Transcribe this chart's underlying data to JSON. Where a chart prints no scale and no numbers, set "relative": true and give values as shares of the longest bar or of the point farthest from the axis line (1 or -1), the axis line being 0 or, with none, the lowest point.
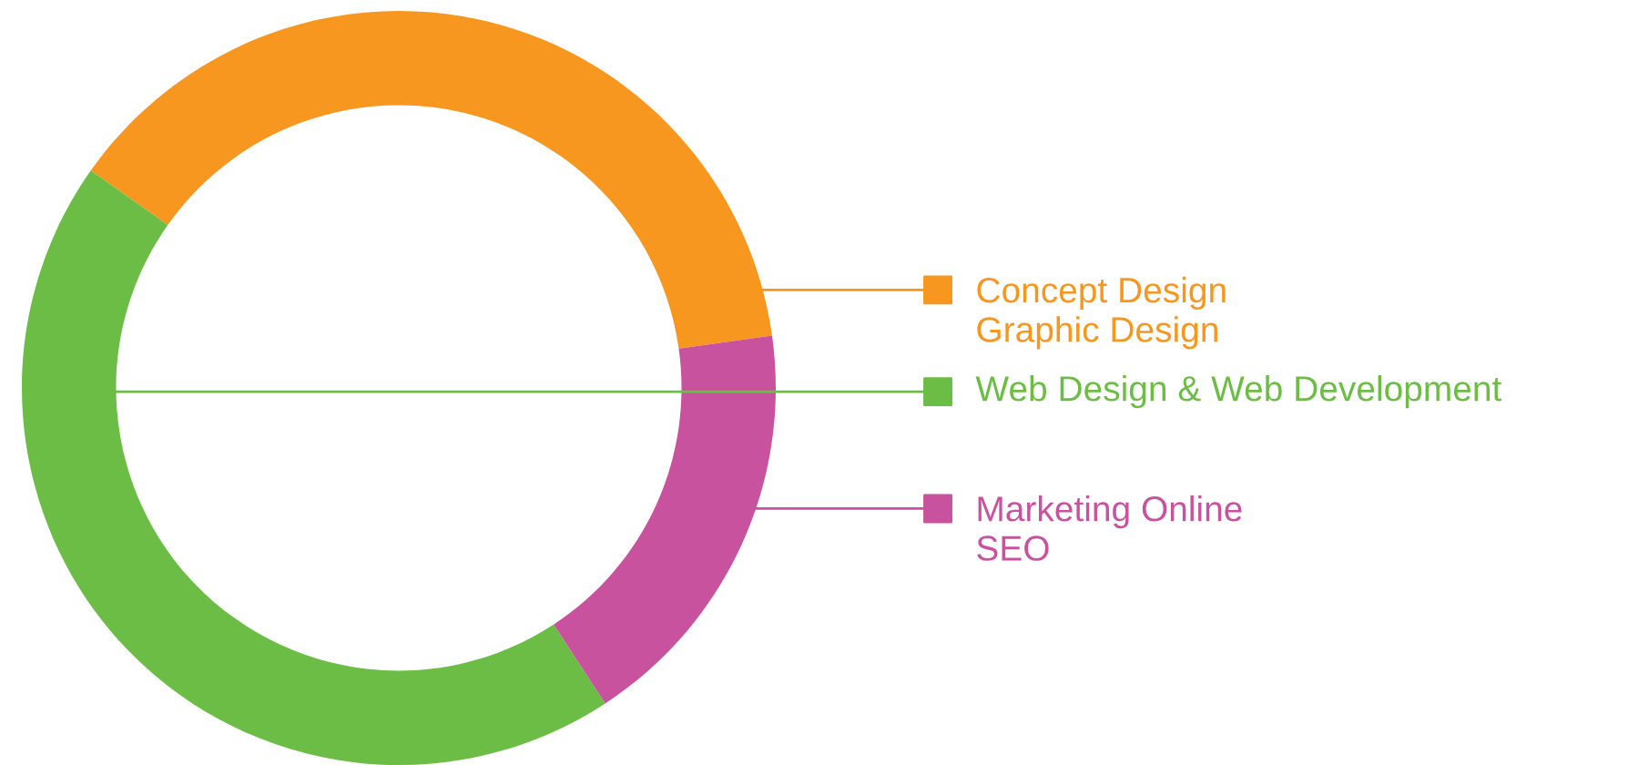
{
  "chart_data": {
    "type": "donut",
    "relative": true,
    "categories": [
      "Concept Design\nGraphic Design",
      "Web Design & Web Development",
      "Marketing Online\nSEO"
    ],
    "values": [
      38,
      44,
      18
    ],
    "colors": [
      "#f7971f",
      "#6cbd45",
      "#c9529f"
    ],
    "legend": "right"
  }
}
